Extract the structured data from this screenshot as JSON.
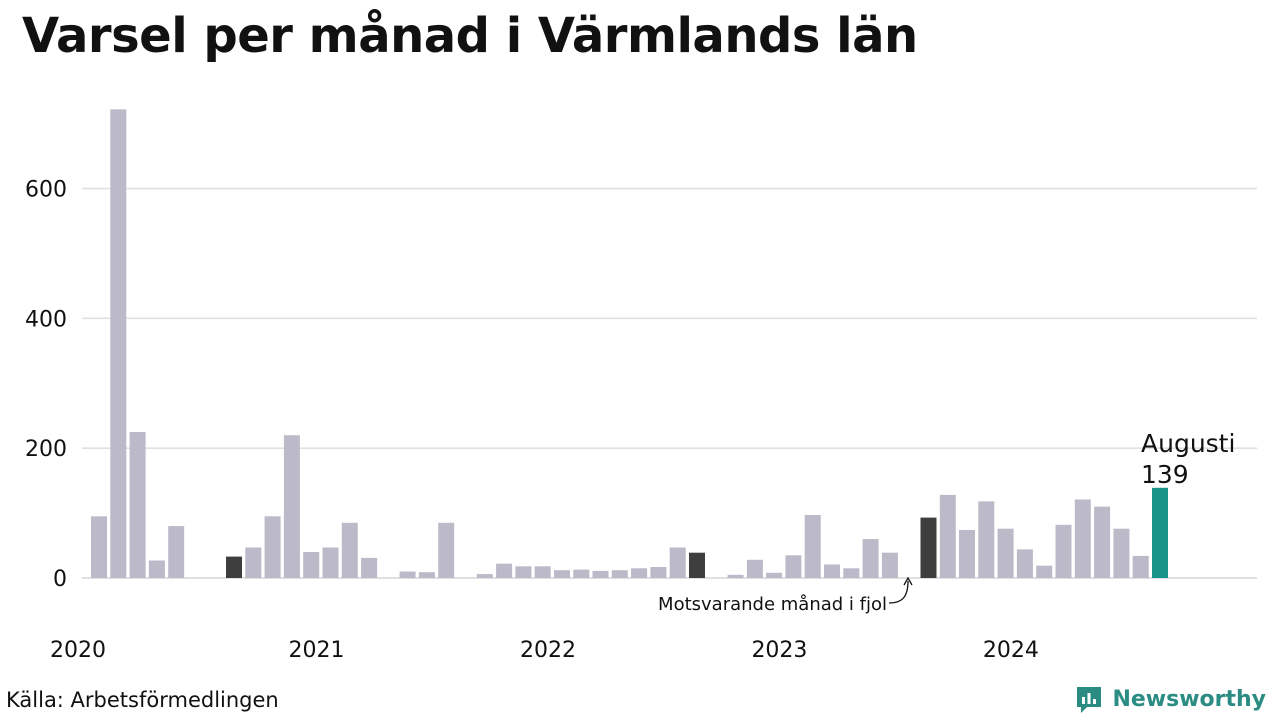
{
  "title": "Varsel per månad i Värmlands län",
  "source": "Källa: Arbetsförmedlingen",
  "brand": {
    "name": "Newsworthy",
    "icon": "newsworthy-logo-icon"
  },
  "colors": {
    "bar": "#bcbac8",
    "previous_year": "#3e3e3e",
    "current": "#1a9488",
    "grid": "#e0e0e0"
  },
  "annotations": {
    "previous_label": "Motsvarande månad i fjol",
    "current_month": "Augusti",
    "current_value": "139"
  },
  "chart_data": {
    "type": "bar",
    "title": "Varsel per månad i Värmlands län",
    "xlabel": "",
    "ylabel": "",
    "ylim": [
      0,
      720
    ],
    "y_ticks": [
      0,
      200,
      400,
      600
    ],
    "x_ticks": [
      "2020",
      "2021",
      "2022",
      "2023",
      "2024"
    ],
    "grid": true,
    "categories": [
      "2020-01",
      "2020-02",
      "2020-03",
      "2020-04",
      "2020-05",
      "2020-06",
      "2020-07",
      "2020-08",
      "2020-09",
      "2020-10",
      "2020-11",
      "2020-12",
      "2021-01",
      "2021-02",
      "2021-03",
      "2021-04",
      "2021-05",
      "2021-06",
      "2021-07",
      "2021-08",
      "2021-09",
      "2021-10",
      "2021-11",
      "2021-12",
      "2022-01",
      "2022-02",
      "2022-03",
      "2022-04",
      "2022-05",
      "2022-06",
      "2022-07",
      "2022-08",
      "2022-09",
      "2022-10",
      "2022-11",
      "2022-12",
      "2023-01",
      "2023-02",
      "2023-03",
      "2023-04",
      "2023-05",
      "2023-06",
      "2023-07",
      "2023-08",
      "2023-09",
      "2023-10",
      "2023-11",
      "2023-12",
      "2024-01",
      "2024-02",
      "2024-03",
      "2024-04",
      "2024-05",
      "2024-06",
      "2024-07",
      "2024-08"
    ],
    "values": [
      95,
      722,
      225,
      27,
      80,
      0,
      0,
      33,
      47,
      95,
      220,
      40,
      47,
      85,
      31,
      0,
      10,
      9,
      85,
      0,
      6,
      22,
      18,
      18,
      12,
      13,
      11,
      12,
      15,
      17,
      47,
      39,
      0,
      5,
      28,
      8,
      35,
      97,
      21,
      15,
      60,
      39,
      0,
      93,
      128,
      74,
      118,
      76,
      44,
      19,
      82,
      121,
      110,
      76,
      34,
      139
    ],
    "highlight_previous_year": [
      "2020-08",
      "2022-08",
      "2023-08"
    ],
    "highlight_current": "2024-08"
  }
}
